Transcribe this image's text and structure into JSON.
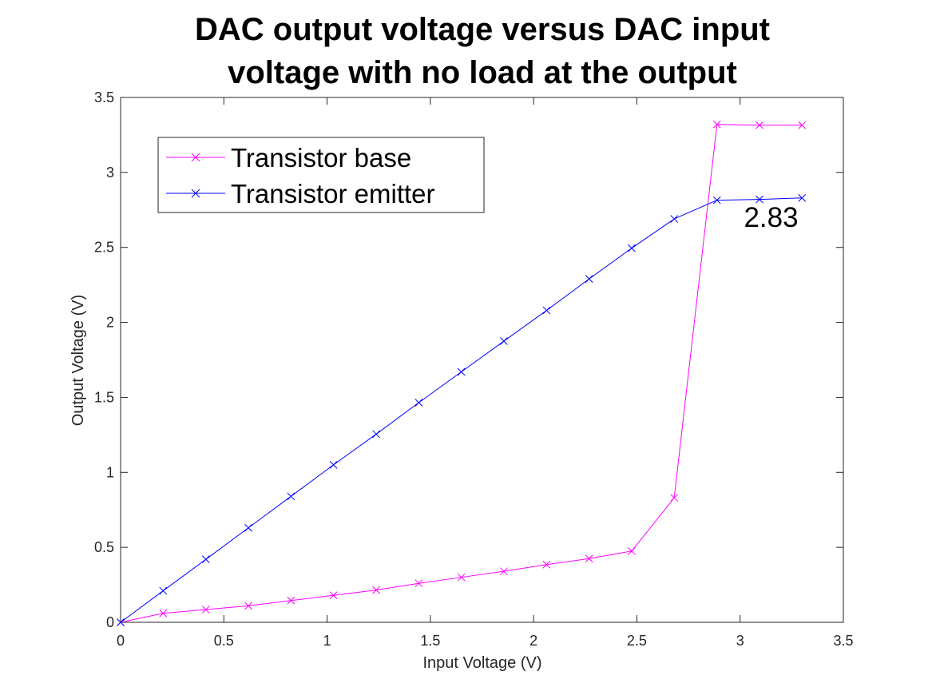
{
  "chart_data": {
    "type": "line",
    "title_lines": [
      "DAC output voltage versus DAC input",
      "voltage with no load at the output"
    ],
    "xlabel": "Input Voltage (V)",
    "ylabel": "Output Voltage (V)",
    "xlim": [
      0,
      3.5
    ],
    "ylim": [
      0,
      3.5
    ],
    "xticks": [
      0,
      0.5,
      1,
      1.5,
      2,
      2.5,
      3,
      3.5
    ],
    "yticks": [
      0,
      0.5,
      1,
      1.5,
      2,
      2.5,
      3,
      3.5
    ],
    "x_tick_labels": [
      "0",
      "0.5",
      "1",
      "1.5",
      "2",
      "2.5",
      "3",
      "3.5"
    ],
    "y_tick_labels": [
      "0",
      "0.5",
      "1",
      "1.5",
      "2",
      "2.5",
      "3",
      "3.5"
    ],
    "grid": false,
    "legend_position": "top-left",
    "x": [
      0,
      0.206,
      0.413,
      0.619,
      0.825,
      1.031,
      1.238,
      1.444,
      1.65,
      1.856,
      2.063,
      2.269,
      2.475,
      2.681,
      2.888,
      3.094,
      3.3
    ],
    "series": [
      {
        "name": "Transistor base",
        "color": "#ff00ff",
        "marker": "x",
        "values": [
          0.0,
          0.06,
          0.085,
          0.11,
          0.145,
          0.18,
          0.215,
          0.26,
          0.3,
          0.34,
          0.385,
          0.425,
          0.475,
          0.83,
          3.32,
          3.315,
          3.315
        ]
      },
      {
        "name": "Transistor emitter",
        "color": "#0000ff",
        "marker": "x",
        "values": [
          0.0,
          0.21,
          0.42,
          0.63,
          0.84,
          1.05,
          1.255,
          1.465,
          1.67,
          1.875,
          2.08,
          2.29,
          2.495,
          2.69,
          2.815,
          2.82,
          2.83
        ]
      }
    ],
    "annotations": [
      {
        "text": "2.83",
        "x": 3.15,
        "y": 2.7
      }
    ]
  }
}
